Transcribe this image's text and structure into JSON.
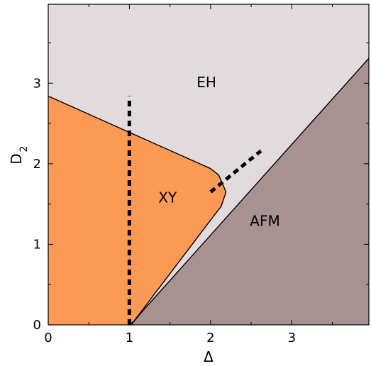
{
  "chart_data": {
    "type": "area",
    "title": "",
    "xlabel": "Δ",
    "ylabel_main": "D",
    "ylabel_sub": "2",
    "xlim": [
      0,
      3.95
    ],
    "ylim": [
      0,
      3.98
    ],
    "xticks": [
      0,
      1,
      2,
      3
    ],
    "yticks": [
      0,
      1,
      2,
      3
    ],
    "xtick_labels": [
      "0",
      "1",
      "2",
      "3"
    ],
    "ytick_labels": [
      "0",
      "1",
      "2",
      "3"
    ],
    "grid": false,
    "legend": "none",
    "colors": {
      "EH": "#e2dbdd",
      "XY": "#fc9955",
      "AFM": "#a89191",
      "boundary": "#000000"
    },
    "regions": [
      {
        "name": "EH",
        "label_pos": [
          1.95,
          2.95
        ],
        "polygon": [
          [
            0,
            2.84
          ],
          [
            2.0,
            1.94
          ],
          [
            2.1,
            1.86
          ],
          [
            2.19,
            1.65
          ],
          [
            2.13,
            1.47
          ],
          [
            2.06,
            1.38
          ],
          [
            1.05,
            0.04
          ],
          [
            1.0,
            0.0
          ],
          [
            1.02,
            0.0
          ],
          [
            1.17,
            0.18
          ],
          [
            3.95,
            3.31
          ],
          [
            3.95,
            3.98
          ],
          [
            0,
            3.98
          ]
        ]
      },
      {
        "name": "XY",
        "label_pos": [
          1.47,
          1.52
        ],
        "polygon": [
          [
            0,
            0
          ],
          [
            1.0,
            0
          ],
          [
            1.05,
            0.04
          ],
          [
            2.06,
            1.38
          ],
          [
            2.13,
            1.47
          ],
          [
            2.19,
            1.65
          ],
          [
            2.1,
            1.86
          ],
          [
            2.0,
            1.94
          ],
          [
            0,
            2.84
          ]
        ]
      },
      {
        "name": "AFM",
        "label_pos": [
          2.67,
          1.23
        ],
        "polygon": [
          [
            1.02,
            0
          ],
          [
            1.17,
            0.18
          ],
          [
            3.95,
            3.31
          ],
          [
            3.95,
            0
          ]
        ]
      }
    ],
    "boundaries": [
      {
        "name": "eh-xy-boundary",
        "points": [
          [
            0,
            2.84
          ],
          [
            2.0,
            1.94
          ],
          [
            2.1,
            1.86
          ],
          [
            2.19,
            1.65
          ],
          [
            2.13,
            1.47
          ],
          [
            2.06,
            1.38
          ],
          [
            1.05,
            0.04
          ],
          [
            1.0,
            0.0
          ]
        ]
      },
      {
        "name": "eh-afm-boundary",
        "points": [
          [
            1.02,
            0.0
          ],
          [
            1.17,
            0.18
          ],
          [
            3.95,
            3.31
          ]
        ]
      }
    ],
    "dashed_lines": [
      {
        "name": "vertical-cut",
        "points": [
          [
            1.0,
            0.0
          ],
          [
            1.0,
            2.84
          ]
        ]
      },
      {
        "name": "diagonal-cut",
        "points": [
          [
            2.0,
            1.65
          ],
          [
            2.62,
            2.16
          ]
        ]
      }
    ]
  }
}
